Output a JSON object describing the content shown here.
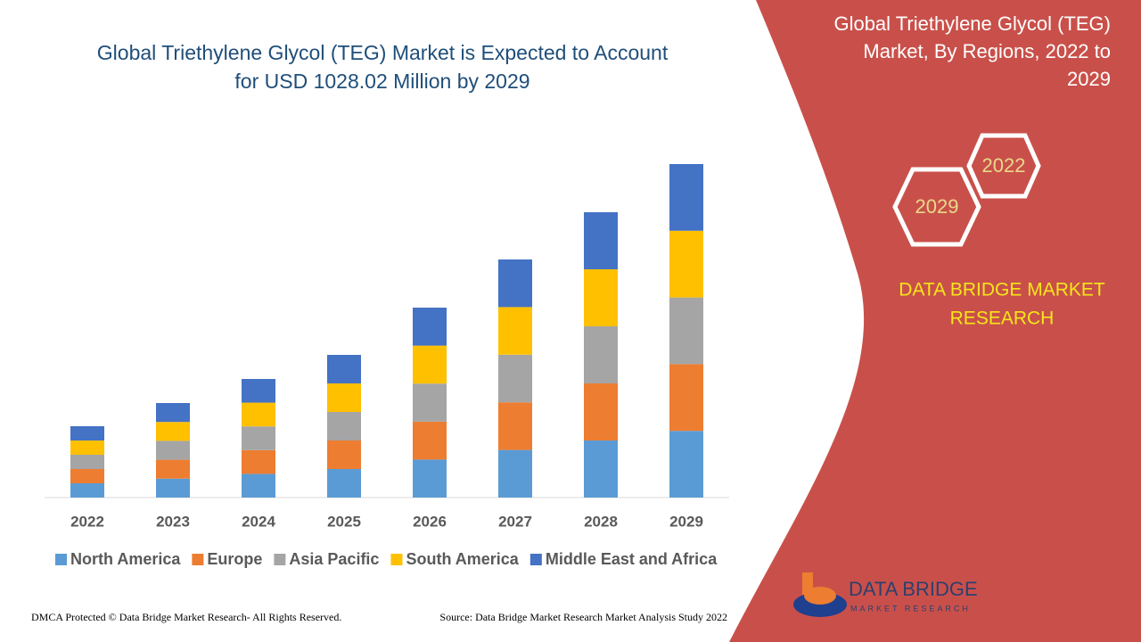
{
  "chart_data": {
    "type": "stacked_bar",
    "title": [
      "Global Triethylene Glycol (TEG) Market is Expected to Account",
      "for USD 1028.02 Million by 2029"
    ],
    "categories": [
      "2022",
      "2023",
      "2024",
      "2025",
      "2026",
      "2027",
      "2028",
      "2029"
    ],
    "series": [
      {
        "name": "North America",
        "color": "#5b9bd5",
        "values": [
          16,
          21.2,
          26.6,
          32,
          42.6,
          53.4,
          64,
          74.8
        ]
      },
      {
        "name": "Europe",
        "color": "#ed7d31",
        "values": [
          16,
          21.2,
          26.6,
          32,
          42.6,
          53.4,
          64,
          74.8
        ]
      },
      {
        "name": "Asia Pacific",
        "color": "#a5a5a5",
        "values": [
          16,
          21.2,
          26.6,
          32,
          42.6,
          53.4,
          64,
          74.8
        ]
      },
      {
        "name": "South America",
        "color": "#ffc000",
        "values": [
          16,
          21.2,
          26.6,
          32,
          42.6,
          53.4,
          64,
          74.8
        ]
      },
      {
        "name": "Middle East and Africa",
        "color": "#4472c4",
        "values": [
          16,
          21.2,
          26.6,
          32,
          42.6,
          53.4,
          64,
          74.8
        ]
      }
    ]
  },
  "panel": {
    "title": [
      "Global Triethylene Glycol (TEG)",
      "Market, By Regions, 2022 to",
      "2029"
    ],
    "hexagons": [
      "2022",
      "2029"
    ],
    "brand": [
      "DATA BRIDGE MARKET",
      "RESEARCH"
    ]
  },
  "logo": [
    "DATA BRIDGE",
    "MARKET RESEARCH"
  ],
  "footer": {
    "copyright": "DMCA Protected © Data Bridge Market Research- All Rights Reserved.",
    "source": "Source: Data Bridge Market Research Market Analysis Study 2022"
  }
}
